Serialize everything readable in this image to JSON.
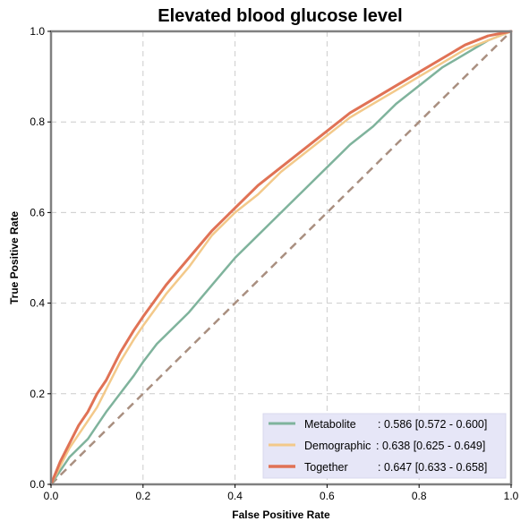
{
  "chart_data": {
    "type": "line",
    "title": "Elevated blood glucose level",
    "xlabel": "False Positive Rate",
    "ylabel": "True Positive Rate",
    "xlim": [
      0,
      1
    ],
    "ylim": [
      0,
      1
    ],
    "xticks": [
      "0.0",
      "0.2",
      "0.4",
      "0.6",
      "0.8",
      "1.0"
    ],
    "yticks": [
      "0.0",
      "0.2",
      "0.4",
      "0.6",
      "0.8",
      "1.0"
    ],
    "grid": true,
    "legend_position": "bottom-right",
    "reference_line": {
      "x": [
        0,
        1
      ],
      "y": [
        0,
        1
      ],
      "style": "dashed",
      "color": "#a98f80"
    },
    "series": [
      {
        "name": "Metabolite",
        "label_name": "Metabolite",
        "label_stat": ": 0.586 [0.572 - 0.600]",
        "color": "#7fb39c",
        "x": [
          0,
          0.02,
          0.04,
          0.06,
          0.08,
          0.1,
          0.12,
          0.15,
          0.18,
          0.2,
          0.23,
          0.26,
          0.3,
          0.35,
          0.4,
          0.45,
          0.5,
          0.55,
          0.6,
          0.65,
          0.7,
          0.75,
          0.8,
          0.85,
          0.9,
          0.95,
          1
        ],
        "y": [
          0,
          0.03,
          0.06,
          0.08,
          0.1,
          0.13,
          0.16,
          0.2,
          0.24,
          0.27,
          0.31,
          0.34,
          0.38,
          0.44,
          0.5,
          0.55,
          0.6,
          0.65,
          0.7,
          0.75,
          0.79,
          0.84,
          0.88,
          0.92,
          0.95,
          0.98,
          1
        ]
      },
      {
        "name": "Demographic",
        "label_name": "Demographic",
        "label_stat": ": 0.638 [0.625 - 0.649]",
        "color": "#f3c98a",
        "x": [
          0,
          0.02,
          0.04,
          0.06,
          0.08,
          0.1,
          0.12,
          0.15,
          0.18,
          0.2,
          0.25,
          0.3,
          0.35,
          0.4,
          0.45,
          0.5,
          0.55,
          0.6,
          0.65,
          0.7,
          0.75,
          0.8,
          0.85,
          0.9,
          0.95,
          1
        ],
        "y": [
          0,
          0.04,
          0.08,
          0.11,
          0.14,
          0.17,
          0.21,
          0.27,
          0.32,
          0.35,
          0.42,
          0.48,
          0.55,
          0.6,
          0.64,
          0.69,
          0.73,
          0.77,
          0.81,
          0.84,
          0.87,
          0.9,
          0.93,
          0.96,
          0.98,
          1
        ]
      },
      {
        "name": "Together",
        "label_name": "Together",
        "label_stat": ": 0.647 [0.633 - 0.658]",
        "color": "#e07255",
        "x": [
          0,
          0.02,
          0.04,
          0.06,
          0.08,
          0.1,
          0.12,
          0.15,
          0.18,
          0.2,
          0.25,
          0.3,
          0.35,
          0.4,
          0.45,
          0.5,
          0.55,
          0.6,
          0.65,
          0.7,
          0.75,
          0.8,
          0.85,
          0.9,
          0.95,
          1
        ],
        "y": [
          0,
          0.05,
          0.09,
          0.13,
          0.16,
          0.2,
          0.23,
          0.29,
          0.34,
          0.37,
          0.44,
          0.5,
          0.56,
          0.61,
          0.66,
          0.7,
          0.74,
          0.78,
          0.82,
          0.85,
          0.88,
          0.91,
          0.94,
          0.97,
          0.99,
          1
        ]
      }
    ]
  },
  "colors": {
    "background": "#ffffff",
    "grid": "#cccccc",
    "frame": "#808080",
    "legend_bg": "#e6e6f7"
  }
}
